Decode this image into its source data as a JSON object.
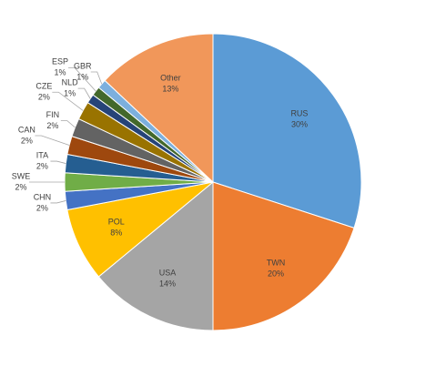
{
  "chart_data": {
    "type": "pie",
    "categories": [
      "RUS",
      "TWN",
      "USA",
      "POL",
      "CHN",
      "SWE",
      "ITA",
      "CAN",
      "FIN",
      "CZE",
      "NLD",
      "ESP",
      "GBR",
      "Other"
    ],
    "values": [
      30,
      20,
      14,
      8,
      2,
      2,
      2,
      2,
      2,
      2,
      1,
      1,
      1,
      13
    ],
    "value_labels": [
      "30%",
      "20%",
      "14%",
      "8%",
      "2%",
      "2%",
      "2%",
      "2%",
      "2%",
      "2%",
      "1%",
      "1%",
      "1%",
      "13%"
    ],
    "colors": [
      "#5b9bd5",
      "#ed7d31",
      "#a5a5a5",
      "#ffc000",
      "#4472c4",
      "#70ad47",
      "#255e91",
      "#9e480e",
      "#636363",
      "#997300",
      "#264478",
      "#43682b",
      "#7cafdd",
      "#f1975a"
    ]
  }
}
